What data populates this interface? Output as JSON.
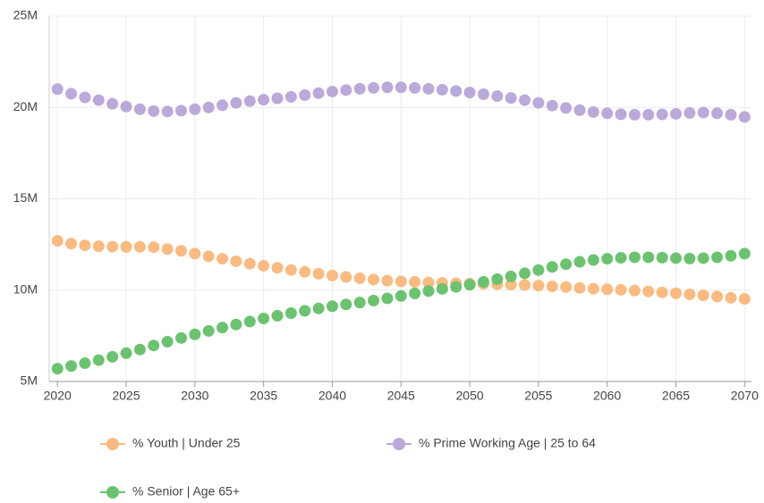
{
  "chart_data": {
    "type": "scatter",
    "x": [
      2020,
      2021,
      2022,
      2023,
      2024,
      2025,
      2026,
      2027,
      2028,
      2029,
      2030,
      2031,
      2032,
      2033,
      2034,
      2035,
      2036,
      2037,
      2038,
      2039,
      2040,
      2041,
      2042,
      2043,
      2044,
      2045,
      2046,
      2047,
      2048,
      2049,
      2050,
      2051,
      2052,
      2053,
      2054,
      2055,
      2056,
      2057,
      2058,
      2059,
      2060,
      2061,
      2062,
      2063,
      2064,
      2065,
      2066,
      2067,
      2068,
      2069,
      2070
    ],
    "series": [
      {
        "name": "% Youth | Under 25",
        "color": "#f9bb82",
        "values": [
          12700000,
          12550000,
          12450000,
          12400000,
          12380000,
          12370000,
          12370000,
          12350000,
          12250000,
          12150000,
          12000000,
          11850000,
          11720000,
          11580000,
          11450000,
          11330000,
          11220000,
          11100000,
          11000000,
          10900000,
          10800000,
          10720000,
          10650000,
          10580000,
          10520000,
          10480000,
          10450000,
          10420000,
          10400000,
          10380000,
          10360000,
          10340000,
          10320000,
          10300000,
          10280000,
          10250000,
          10200000,
          10170000,
          10120000,
          10080000,
          10050000,
          10020000,
          9980000,
          9930000,
          9880000,
          9830000,
          9770000,
          9720000,
          9650000,
          9580000,
          9520000
        ]
      },
      {
        "name": "% Prime Working Age | 25 to 64",
        "color": "#bba9da",
        "values": [
          21000000,
          20750000,
          20550000,
          20400000,
          20200000,
          20050000,
          19900000,
          19800000,
          19780000,
          19820000,
          19900000,
          20000000,
          20120000,
          20250000,
          20350000,
          20420000,
          20500000,
          20580000,
          20680000,
          20780000,
          20870000,
          20950000,
          21020000,
          21070000,
          21100000,
          21100000,
          21070000,
          21020000,
          20970000,
          20900000,
          20820000,
          20720000,
          20620000,
          20520000,
          20400000,
          20250000,
          20100000,
          19970000,
          19850000,
          19750000,
          19680000,
          19630000,
          19600000,
          19600000,
          19620000,
          19650000,
          19700000,
          19720000,
          19680000,
          19600000,
          19480000
        ]
      },
      {
        "name": "% Senior | Age 65+",
        "color": "#6cc270",
        "values": [
          5700000,
          5850000,
          6000000,
          6170000,
          6350000,
          6550000,
          6750000,
          6970000,
          7180000,
          7380000,
          7580000,
          7770000,
          7950000,
          8120000,
          8280000,
          8450000,
          8600000,
          8740000,
          8870000,
          9000000,
          9120000,
          9220000,
          9320000,
          9430000,
          9550000,
          9680000,
          9820000,
          9950000,
          10070000,
          10180000,
          10300000,
          10450000,
          10600000,
          10750000,
          10920000,
          11100000,
          11270000,
          11420000,
          11550000,
          11650000,
          11720000,
          11770000,
          11800000,
          11800000,
          11780000,
          11750000,
          11730000,
          11750000,
          11800000,
          11880000,
          12000000
        ]
      }
    ],
    "xlim": [
      2019.4,
      2070.5
    ],
    "xticks": [
      2020,
      2025,
      2030,
      2035,
      2040,
      2045,
      2050,
      2055,
      2060,
      2065,
      2070
    ],
    "ylim": [
      5000000,
      25000000
    ],
    "yticks": [
      {
        "value": 5000000,
        "label": "5M"
      },
      {
        "value": 10000000,
        "label": "10M"
      },
      {
        "value": 15000000,
        "label": "15M"
      },
      {
        "value": 20000000,
        "label": "20M"
      },
      {
        "value": 25000000,
        "label": "25M"
      }
    ],
    "grid": true,
    "legend": "bottom"
  }
}
